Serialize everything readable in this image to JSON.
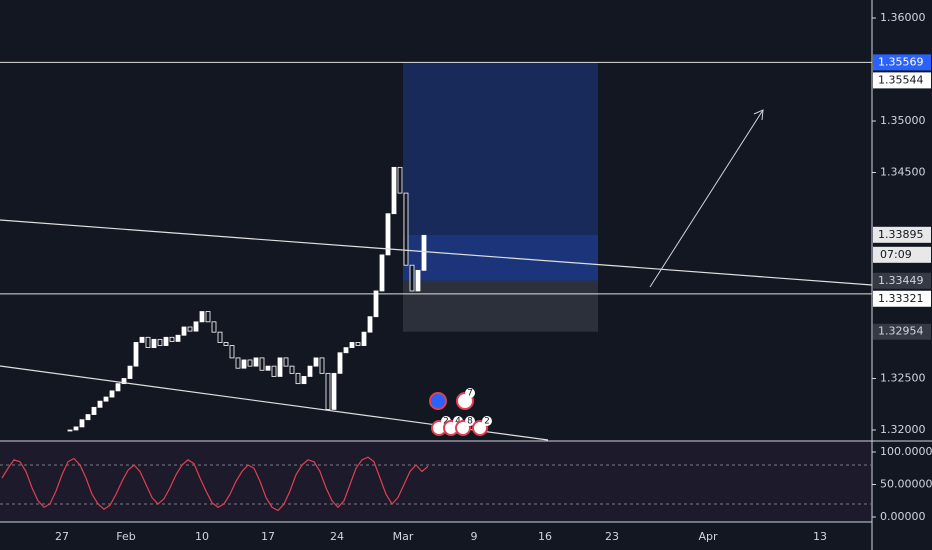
{
  "price_axis": {
    "ticks": [
      {
        "value": 1.36,
        "label": "1.36000"
      },
      {
        "value": 1.35,
        "label": "1.35000"
      },
      {
        "value": 1.345,
        "label": "1.34500"
      },
      {
        "value": 1.325,
        "label": "1.32500"
      },
      {
        "value": 1.32,
        "label": "1.32000"
      }
    ]
  },
  "price_tags": [
    {
      "value": 1.35569,
      "label": "1.35569",
      "style": "blue"
    },
    {
      "value": 1.35544,
      "label": "1.35544",
      "style": "white"
    },
    {
      "value": 1.33895,
      "label": "1.33895",
      "style": "light"
    },
    {
      "value": 1.33449,
      "label": "1.33449",
      "style": "gray"
    },
    {
      "value": 1.33321,
      "label": "1.33321",
      "style": "white"
    },
    {
      "value": 1.32954,
      "label": "1.32954",
      "style": "gray"
    }
  ],
  "countdown": "07:09",
  "time_axis": [
    "27",
    "Feb",
    "10",
    "17",
    "24",
    "Mar",
    "9",
    "16",
    "23",
    "Apr",
    "13"
  ],
  "oscillator_axis": {
    "ticks": [
      {
        "value": 100,
        "label": "100.00000"
      },
      {
        "value": 50,
        "label": "50.00000"
      },
      {
        "value": 0,
        "label": "0.00000"
      }
    ],
    "levels": [
      80,
      20
    ]
  },
  "events": [
    "7",
    "2",
    "4",
    "8",
    "2"
  ],
  "price": {
    "closes": [
      1.32,
      1.3203,
      1.321,
      1.3215,
      1.3222,
      1.3228,
      1.3232,
      1.3238,
      1.3245,
      1.325,
      1.3262,
      1.3285,
      1.329,
      1.328,
      1.3288,
      1.3282,
      1.329,
      1.3286,
      1.3292,
      1.33,
      1.3296,
      1.3305,
      1.3315,
      1.3305,
      1.3295,
      1.3285,
      1.3282,
      1.327,
      1.326,
      1.3268,
      1.3262,
      1.327,
      1.3258,
      1.3262,
      1.3252,
      1.327,
      1.3262,
      1.3255,
      1.3245,
      1.3252,
      1.3262,
      1.327,
      1.3255,
      1.322,
      1.3255,
      1.3275,
      1.328,
      1.3285,
      1.3282,
      1.3295,
      1.331,
      1.3335,
      1.337,
      1.341,
      1.3455,
      1.343,
      1.336,
      1.3335,
      1.3355,
      1.3389
    ]
  },
  "oscillator": {
    "values": [
      60,
      75,
      88,
      85,
      70,
      45,
      25,
      15,
      20,
      40,
      65,
      85,
      90,
      80,
      60,
      35,
      20,
      12,
      18,
      35,
      55,
      72,
      80,
      70,
      50,
      30,
      20,
      28,
      45,
      65,
      80,
      88,
      82,
      60,
      40,
      22,
      15,
      20,
      35,
      55,
      70,
      80,
      75,
      55,
      30,
      15,
      10,
      20,
      40,
      65,
      80,
      88,
      85,
      70,
      45,
      25,
      15,
      25,
      50,
      75,
      88,
      92,
      85,
      60,
      35,
      20,
      30,
      50,
      70,
      80,
      70,
      78
    ]
  }
}
